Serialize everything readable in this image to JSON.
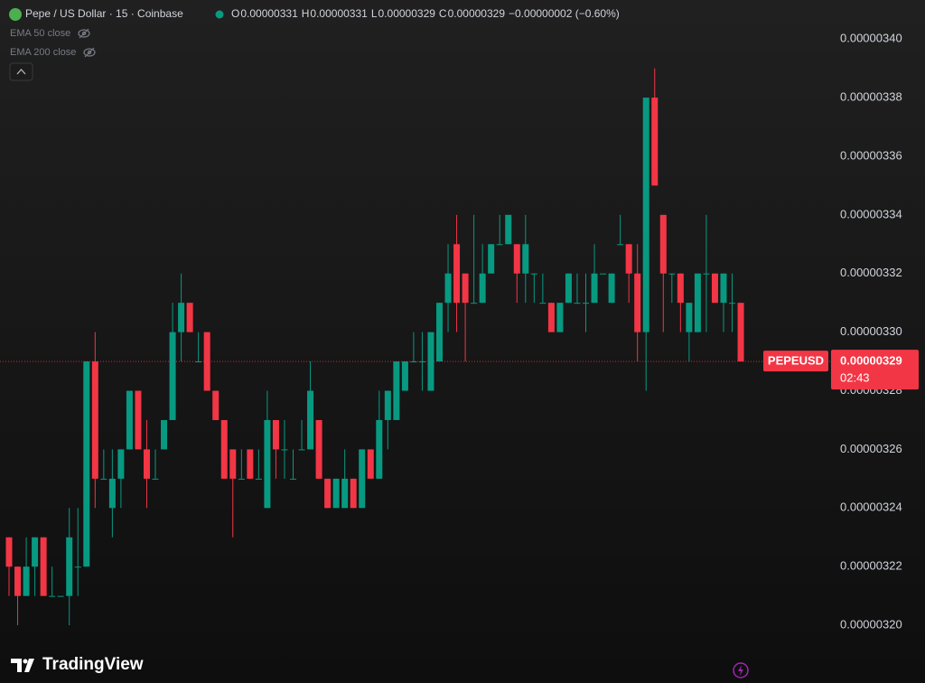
{
  "chart_data": {
    "type": "candlestick",
    "header": {
      "symbol": "Pepe / US Dollar · 15 · Coinbase",
      "ohlc": [
        {
          "label": "O",
          "value": "0.00000331"
        },
        {
          "label": "H",
          "value": "0.00000331"
        },
        {
          "label": "L",
          "value": "0.00000329"
        },
        {
          "label": "C",
          "value": "0.00000329"
        }
      ],
      "change": "−0.00000002 (−0.60%)"
    },
    "indicators": [
      "EMA 50 close",
      "EMA 200 close"
    ],
    "symbol_label": "PEPEUSD",
    "last_price": {
      "value": 3.29e-06,
      "label": "0.00000329"
    },
    "countdown": "02:43",
    "brand": "TradingView",
    "up_color": "#089981",
    "down_color": "#f23645",
    "ylim": [
      3.1914e-06,
      3.4133e-06
    ],
    "yticks": [
      {
        "value": 3.4e-06,
        "label": "0.00000340"
      },
      {
        "value": 3.38e-06,
        "label": "0.00000338"
      },
      {
        "value": 3.36e-06,
        "label": "0.00000336"
      },
      {
        "value": 3.34e-06,
        "label": "0.00000334"
      },
      {
        "value": 3.32e-06,
        "label": "0.00000332"
      },
      {
        "value": 3.3e-06,
        "label": "0.00000330"
      },
      {
        "value": 3.28e-06,
        "label": "0.00000328"
      },
      {
        "value": 3.26e-06,
        "label": "0.00000326"
      },
      {
        "value": 3.24e-06,
        "label": "0.00000324"
      },
      {
        "value": 3.22e-06,
        "label": "0.00000322"
      },
      {
        "value": 3.2e-06,
        "label": "0.00000320"
      }
    ],
    "grid": false,
    "open": [
      3.23e-06,
      3.22e-06,
      3.21e-06,
      3.22e-06,
      3.23e-06,
      3.21e-06,
      3.21e-06,
      3.21e-06,
      3.22e-06,
      3.22e-06,
      3.29e-06,
      3.25e-06,
      3.24e-06,
      3.25e-06,
      3.26e-06,
      3.28e-06,
      3.26e-06,
      3.25e-06,
      3.26e-06,
      3.27e-06,
      3.3e-06,
      3.31e-06,
      3.29e-06,
      3.3e-06,
      3.28e-06,
      3.27e-06,
      3.26e-06,
      3.25e-06,
      3.26e-06,
      3.25e-06,
      3.24e-06,
      3.27e-06,
      3.26e-06,
      3.25e-06,
      3.26e-06,
      3.26e-06,
      3.27e-06,
      3.25e-06,
      3.24e-06,
      3.24e-06,
      3.25e-06,
      3.24e-06,
      3.26e-06,
      3.25e-06,
      3.27e-06,
      3.27e-06,
      3.28e-06,
      3.29e-06,
      3.29e-06,
      3.28e-06,
      3.29e-06,
      3.31e-06,
      3.33e-06,
      3.32e-06,
      3.31e-06,
      3.31e-06,
      3.32e-06,
      3.33e-06,
      3.33e-06,
      3.33e-06,
      3.32e-06,
      3.32e-06,
      3.31e-06,
      3.31e-06,
      3.3e-06,
      3.31e-06,
      3.31e-06,
      3.31e-06,
      3.31e-06,
      3.32e-06,
      3.31e-06,
      3.33e-06,
      3.33e-06,
      3.32e-06,
      3.3e-06,
      3.38e-06,
      3.34e-06,
      3.32e-06,
      3.32e-06,
      3.3e-06,
      3.3e-06,
      3.32e-06,
      3.32e-06,
      3.31e-06,
      3.31e-06,
      3.31e-06
    ],
    "high": [
      3.23e-06,
      3.22e-06,
      3.23e-06,
      3.23e-06,
      3.23e-06,
      3.22e-06,
      3.21e-06,
      3.24e-06,
      3.24e-06,
      3.29e-06,
      3.3e-06,
      3.26e-06,
      3.26e-06,
      3.26e-06,
      3.28e-06,
      3.28e-06,
      3.27e-06,
      3.26e-06,
      3.27e-06,
      3.31e-06,
      3.32e-06,
      3.31e-06,
      3.3e-06,
      3.3e-06,
      3.28e-06,
      3.27e-06,
      3.26e-06,
      3.26e-06,
      3.26e-06,
      3.26e-06,
      3.28e-06,
      3.27e-06,
      3.27e-06,
      3.26e-06,
      3.27e-06,
      3.29e-06,
      3.27e-06,
      3.25e-06,
      3.25e-06,
      3.26e-06,
      3.25e-06,
      3.26e-06,
      3.26e-06,
      3.28e-06,
      3.28e-06,
      3.29e-06,
      3.29e-06,
      3.3e-06,
      3.3e-06,
      3.3e-06,
      3.31e-06,
      3.33e-06,
      3.34e-06,
      3.32e-06,
      3.34e-06,
      3.33e-06,
      3.33e-06,
      3.34e-06,
      3.34e-06,
      3.33e-06,
      3.34e-06,
      3.32e-06,
      3.32e-06,
      3.31e-06,
      3.31e-06,
      3.32e-06,
      3.32e-06,
      3.32e-06,
      3.33e-06,
      3.32e-06,
      3.32e-06,
      3.34e-06,
      3.33e-06,
      3.33e-06,
      3.38e-06,
      3.39e-06,
      3.34e-06,
      3.32e-06,
      3.32e-06,
      3.31e-06,
      3.32e-06,
      3.34e-06,
      3.32e-06,
      3.32e-06,
      3.32e-06,
      3.31e-06
    ],
    "low": [
      3.21e-06,
      3.2e-06,
      3.21e-06,
      3.21e-06,
      3.21e-06,
      3.21e-06,
      3.21e-06,
      3.2e-06,
      3.21e-06,
      3.22e-06,
      3.24e-06,
      3.25e-06,
      3.23e-06,
      3.24e-06,
      3.26e-06,
      3.26e-06,
      3.24e-06,
      3.25e-06,
      3.26e-06,
      3.27e-06,
      3.29e-06,
      3.3e-06,
      3.29e-06,
      3.28e-06,
      3.27e-06,
      3.25e-06,
      3.23e-06,
      3.25e-06,
      3.25e-06,
      3.25e-06,
      3.24e-06,
      3.25e-06,
      3.25e-06,
      3.25e-06,
      3.26e-06,
      3.26e-06,
      3.25e-06,
      3.24e-06,
      3.24e-06,
      3.24e-06,
      3.24e-06,
      3.24e-06,
      3.25e-06,
      3.25e-06,
      3.26e-06,
      3.27e-06,
      3.28e-06,
      3.29e-06,
      3.28e-06,
      3.28e-06,
      3.29e-06,
      3.3e-06,
      3.3e-06,
      3.29e-06,
      3.31e-06,
      3.31e-06,
      3.32e-06,
      3.33e-06,
      3.33e-06,
      3.31e-06,
      3.31e-06,
      3.31e-06,
      3.31e-06,
      3.3e-06,
      3.3e-06,
      3.31e-06,
      3.31e-06,
      3.3e-06,
      3.31e-06,
      3.32e-06,
      3.31e-06,
      3.33e-06,
      3.31e-06,
      3.29e-06,
      3.28e-06,
      3.35e-06,
      3.3e-06,
      3.31e-06,
      3.3e-06,
      3.29e-06,
      3.3e-06,
      3.3e-06,
      3.31e-06,
      3.3e-06,
      3.3e-06,
      3.29e-06
    ],
    "close": [
      3.22e-06,
      3.21e-06,
      3.22e-06,
      3.23e-06,
      3.21e-06,
      3.21e-06,
      3.21e-06,
      3.23e-06,
      3.22e-06,
      3.29e-06,
      3.25e-06,
      3.25e-06,
      3.25e-06,
      3.26e-06,
      3.28e-06,
      3.26e-06,
      3.25e-06,
      3.25e-06,
      3.27e-06,
      3.3e-06,
      3.31e-06,
      3.3e-06,
      3.29e-06,
      3.28e-06,
      3.27e-06,
      3.25e-06,
      3.25e-06,
      3.25e-06,
      3.25e-06,
      3.25e-06,
      3.27e-06,
      3.26e-06,
      3.26e-06,
      3.25e-06,
      3.26e-06,
      3.28e-06,
      3.25e-06,
      3.24e-06,
      3.25e-06,
      3.25e-06,
      3.24e-06,
      3.26e-06,
      3.25e-06,
      3.27e-06,
      3.28e-06,
      3.29e-06,
      3.29e-06,
      3.29e-06,
      3.29e-06,
      3.3e-06,
      3.31e-06,
      3.32e-06,
      3.31e-06,
      3.31e-06,
      3.31e-06,
      3.32e-06,
      3.33e-06,
      3.33e-06,
      3.34e-06,
      3.32e-06,
      3.33e-06,
      3.32e-06,
      3.31e-06,
      3.3e-06,
      3.31e-06,
      3.32e-06,
      3.31e-06,
      3.31e-06,
      3.32e-06,
      3.32e-06,
      3.32e-06,
      3.33e-06,
      3.32e-06,
      3.3e-06,
      3.38e-06,
      3.35e-06,
      3.32e-06,
      3.32e-06,
      3.31e-06,
      3.31e-06,
      3.32e-06,
      3.32e-06,
      3.31e-06,
      3.32e-06,
      3.31e-06,
      3.29e-06
    ]
  }
}
